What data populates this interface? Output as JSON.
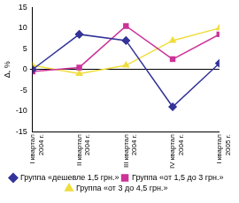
{
  "chart_data": {
    "type": "line",
    "y_label": "Δ, %",
    "categories": [
      "I квартал 2004 г.",
      "II квартал 2004 г.",
      "III квартал 2004 г.",
      "IV квартал 2004 г.",
      "I квартал 2005 г."
    ],
    "series": [
      {
        "name": "Группа «дешевле 1,5 грн.»",
        "color": "#333399",
        "marker": "diamond",
        "values": [
          0,
          8.5,
          7,
          -9,
          1.5
        ]
      },
      {
        "name": "Группа «от 1,5 до 3 грн.»",
        "color": "#cc3399",
        "marker": "square",
        "values": [
          -0.5,
          0.5,
          10.5,
          2.5,
          8.5
        ]
      },
      {
        "name": "Группа «от 3 до 4,5 грн.»",
        "color": "#f0dc3c",
        "marker": "triangle",
        "values": [
          1,
          -1,
          1,
          7,
          10
        ]
      }
    ],
    "ylim": [
      -15,
      15
    ],
    "yticks": [
      -15,
      -10,
      -5,
      0,
      5,
      10,
      15
    ],
    "grid": false,
    "legend": "bottom"
  }
}
